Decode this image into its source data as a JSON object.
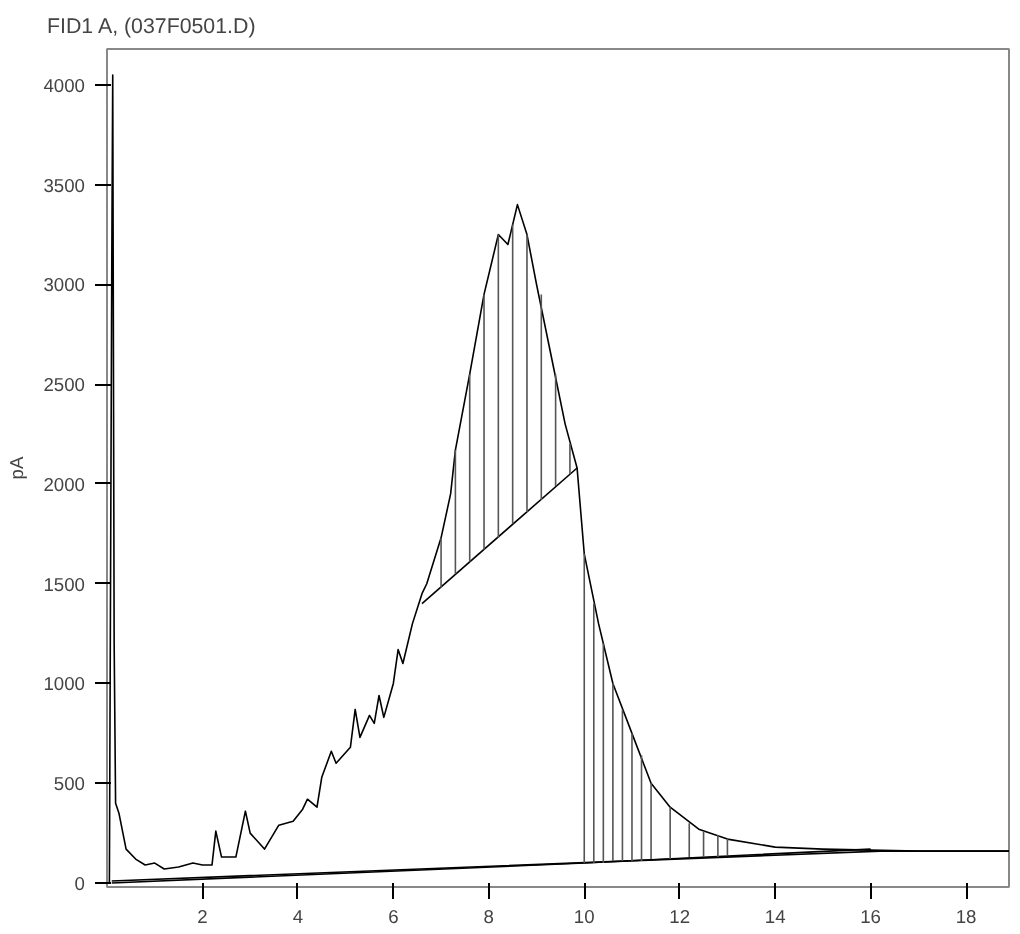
{
  "chart_data": {
    "type": "line",
    "title": "FID1 A, (037F0501.D)",
    "ylabel": "pA",
    "xlim": [
      0,
      18.9
    ],
    "ylim": [
      -20,
      4180
    ],
    "xticks": [
      2,
      4,
      6,
      8,
      10,
      12,
      14,
      16,
      18
    ],
    "yticks": [
      0,
      500,
      1000,
      1500,
      2000,
      2500,
      3000,
      3500,
      4000
    ],
    "grid": false,
    "series": [
      {
        "color": "#000000",
        "x": [
          0.05,
          0.1,
          0.12,
          0.15,
          0.18,
          0.25,
          0.4,
          0.6,
          0.8,
          1.0,
          1.2,
          1.5,
          1.8,
          2.0,
          2.2,
          2.28,
          2.4,
          2.7,
          2.9,
          3.0,
          3.3,
          3.6,
          3.9,
          4.1,
          4.2,
          4.4,
          4.5,
          4.7,
          4.8,
          5.1,
          5.2,
          5.3,
          5.5,
          5.6,
          5.7,
          5.8,
          6.0,
          6.1,
          6.2,
          6.4,
          6.6,
          6.7,
          7.0,
          7.2,
          7.3,
          7.6,
          7.9,
          8.2,
          8.4,
          8.6,
          8.8,
          9.0,
          9.3,
          9.6,
          9.85,
          10.0,
          10.3,
          10.6,
          11.0,
          11.4,
          11.8,
          12.4,
          13.0,
          14.0,
          15.0,
          17.0,
          18.9
        ],
        "values": [
          0,
          3100,
          4050,
          1200,
          400,
          350,
          170,
          120,
          90,
          100,
          70,
          80,
          100,
          90,
          90,
          260,
          130,
          130,
          360,
          250,
          170,
          290,
          310,
          370,
          420,
          380,
          530,
          660,
          600,
          680,
          870,
          730,
          840,
          800,
          940,
          830,
          1000,
          1170,
          1100,
          1300,
          1450,
          1500,
          1730,
          1950,
          2170,
          2550,
          2950,
          3250,
          3200,
          3400,
          3250,
          3000,
          2650,
          2300,
          2080,
          1650,
          1300,
          1000,
          750,
          500,
          380,
          270,
          220,
          180,
          170,
          160,
          160
        ]
      },
      {
        "color": "#000000",
        "x": [
          0.1,
          16.2,
          18.9
        ],
        "values": [
          10,
          160,
          160
        ]
      },
      {
        "color": "#000000",
        "x": [
          0.1,
          10.0,
          16.0
        ],
        "values": [
          0,
          100,
          170
        ]
      },
      {
        "color": "#000000",
        "x": [
          6.6,
          9.85
        ],
        "values": [
          1400,
          2080
        ]
      },
      {
        "color": "#555555",
        "x": [
          7.0,
          7.0,
          null,
          7.3,
          7.3,
          null,
          7.6,
          7.6,
          null,
          7.9,
          7.9,
          null,
          8.2,
          8.2,
          null,
          8.5,
          8.5,
          null,
          8.8,
          8.8,
          null,
          9.1,
          9.1,
          null,
          9.4,
          9.4,
          null,
          9.7,
          9.7,
          null,
          10.0,
          10.0,
          null,
          10.2,
          10.2,
          null,
          10.4,
          10.4,
          null,
          10.6,
          10.6,
          null,
          10.8,
          10.8,
          null,
          11.0,
          11.0,
          null,
          11.2,
          11.2,
          null,
          11.4,
          11.4,
          null,
          11.8,
          11.8,
          null,
          12.2,
          12.2,
          null,
          12.5,
          12.5,
          null,
          12.8,
          12.8,
          null,
          13.0,
          13.0
        ],
        "values": [
          1480,
          1730,
          null,
          1550,
          2170,
          null,
          1610,
          2550,
          null,
          1670,
          2950,
          null,
          1730,
          3250,
          null,
          1800,
          3300,
          null,
          1860,
          3250,
          null,
          1920,
          2950,
          null,
          1990,
          2550,
          null,
          2050,
          2200,
          null,
          100,
          1650,
          null,
          100,
          1400,
          null,
          100,
          1200,
          null,
          110,
          1000,
          null,
          110,
          870,
          null,
          110,
          750,
          null,
          110,
          640,
          null,
          120,
          500,
          null,
          120,
          380,
          null,
          130,
          300,
          null,
          130,
          260,
          null,
          130,
          240,
          null,
          140,
          220
        ]
      }
    ]
  }
}
